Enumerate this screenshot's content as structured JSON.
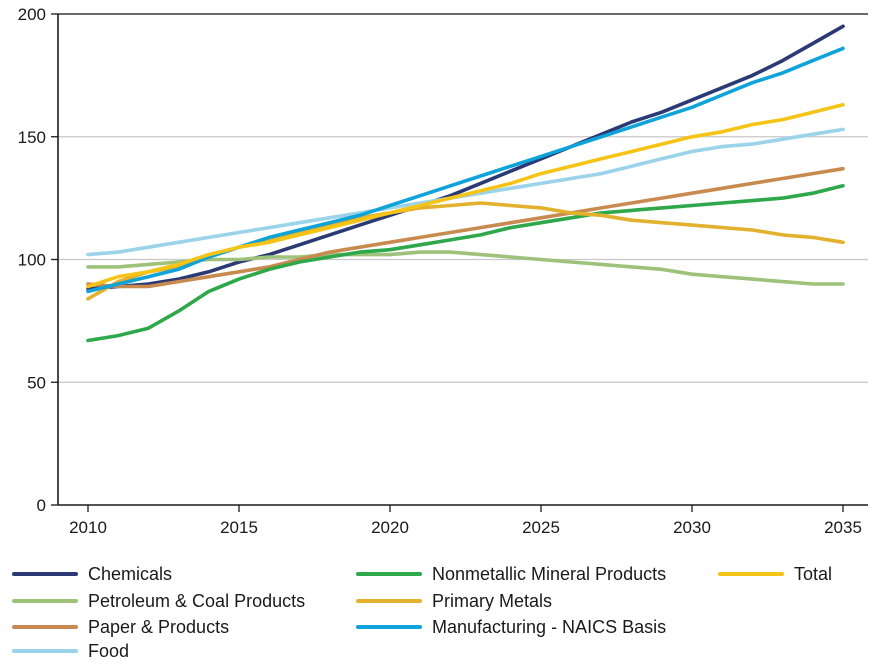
{
  "chart_data": {
    "type": "line",
    "title": "",
    "xlabel": "",
    "ylabel": "",
    "xlim": [
      2010,
      2035
    ],
    "ylim": [
      0,
      200
    ],
    "x_ticks": [
      "2010",
      "2015",
      "2020",
      "2025",
      "2030",
      "2035"
    ],
    "y_ticks": [
      "0",
      "50",
      "100",
      "150",
      "200"
    ],
    "grid": "horizontal",
    "legend_position": "bottom",
    "x": [
      2010,
      2011,
      2012,
      2013,
      2014,
      2015,
      2016,
      2017,
      2018,
      2019,
      2020,
      2021,
      2022,
      2023,
      2024,
      2025,
      2026,
      2027,
      2028,
      2029,
      2030,
      2031,
      2032,
      2033,
      2034,
      2035
    ],
    "series": [
      {
        "name": "Chemicals",
        "color": "#2b3a75",
        "values": [
          88,
          89,
          90,
          92,
          95,
          99,
          102,
          106,
          110,
          114,
          118,
          122,
          126,
          131,
          136,
          141,
          146,
          151,
          156,
          160,
          165,
          170,
          175,
          181,
          188,
          195
        ]
      },
      {
        "name": "Petroleum & Coal Products",
        "color": "#9ec27a",
        "values": [
          97,
          97,
          98,
          99,
          100,
          100,
          101,
          101,
          102,
          102,
          102,
          103,
          103,
          102,
          101,
          100,
          99,
          98,
          97,
          96,
          94,
          93,
          92,
          91,
          90,
          90
        ]
      },
      {
        "name": "Paper & Products",
        "color": "#c98a4f",
        "values": [
          90,
          89,
          89,
          91,
          93,
          95,
          97,
          100,
          103,
          105,
          107,
          109,
          111,
          113,
          115,
          117,
          119,
          121,
          123,
          125,
          127,
          129,
          131,
          133,
          135,
          137
        ]
      },
      {
        "name": "Food",
        "color": "#9ad3ea",
        "values": [
          102,
          103,
          105,
          107,
          109,
          111,
          113,
          115,
          117,
          119,
          121,
          123,
          125,
          127,
          129,
          131,
          133,
          135,
          138,
          141,
          144,
          146,
          147,
          149,
          151,
          153
        ]
      },
      {
        "name": "Nonmetallic Mineral Products",
        "color": "#2ea84a",
        "values": [
          67,
          69,
          72,
          79,
          87,
          92,
          96,
          99,
          101,
          103,
          104,
          106,
          108,
          110,
          113,
          115,
          117,
          119,
          120,
          121,
          122,
          123,
          124,
          125,
          127,
          130
        ]
      },
      {
        "name": "Primary Metals",
        "color": "#e3b12d",
        "values": [
          84,
          91,
          95,
          97,
          101,
          105,
          108,
          111,
          114,
          117,
          119,
          121,
          122,
          123,
          122,
          121,
          119,
          118,
          116,
          115,
          114,
          113,
          112,
          110,
          109,
          107
        ]
      },
      {
        "name": "Manufacturing - NAICS Basis",
        "color": "#0ea3d9",
        "values": [
          87,
          90,
          93,
          96,
          101,
          105,
          109,
          112,
          115,
          118,
          122,
          126,
          130,
          134,
          138,
          142,
          146,
          150,
          154,
          158,
          162,
          167,
          172,
          176,
          181,
          186
        ]
      },
      {
        "name": "Total",
        "color": "#f5c416",
        "values": [
          89,
          93,
          95,
          98,
          102,
          105,
          107,
          110,
          113,
          116,
          119,
          122,
          125,
          128,
          131,
          135,
          138,
          141,
          144,
          147,
          150,
          152,
          155,
          157,
          160,
          163
        ]
      }
    ]
  },
  "legend": {
    "entries": [
      {
        "label": "Chemicals",
        "color": "#2b3a75"
      },
      {
        "label": "Nonmetallic Mineral Products",
        "color": "#2ea84a"
      },
      {
        "label": "Total",
        "color": "#f5c416"
      },
      {
        "label": "Petroleum & Coal Products",
        "color": "#9ec27a"
      },
      {
        "label": "Primary Metals",
        "color": "#e3b12d"
      },
      {
        "label": "Paper & Products",
        "color": "#c98a4f"
      },
      {
        "label": "Manufacturing - NAICS Basis",
        "color": "#0ea3d9"
      },
      {
        "label": "Food",
        "color": "#9ad3ea"
      }
    ]
  }
}
